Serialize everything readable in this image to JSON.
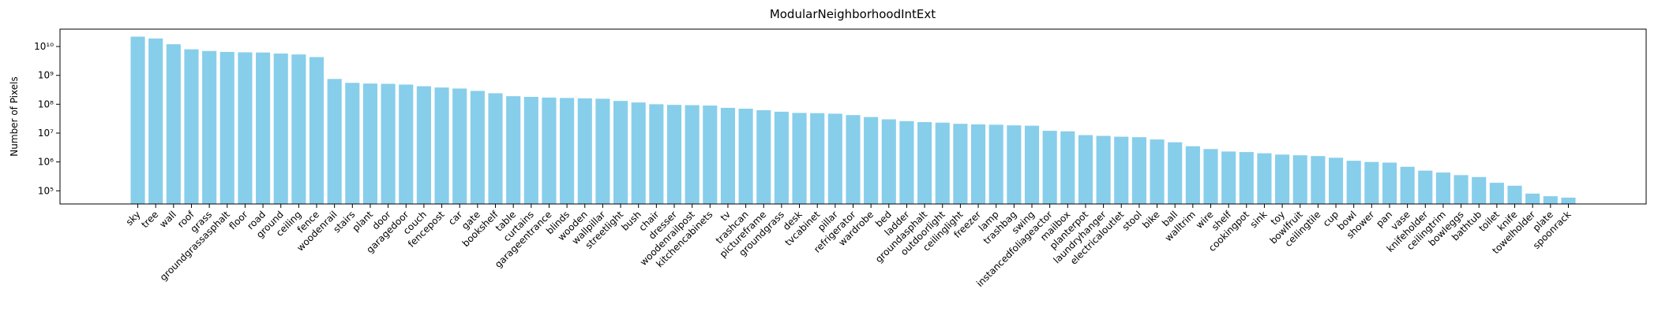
{
  "chart_data": {
    "type": "bar",
    "title": "ModularNeighborhoodIntExt",
    "ylabel": "Number of Pixels",
    "categories": [
      "sky",
      "tree",
      "wall",
      "roof",
      "grass",
      "groundgrassasphalt",
      "floor",
      "road",
      "ground",
      "ceiling",
      "fence",
      "woodenrail",
      "stairs",
      "plant",
      "door",
      "garagedoor",
      "couch",
      "fencepost",
      "car",
      "gate",
      "bookshelf",
      "table",
      "curtains",
      "garageentrance",
      "blinds",
      "wooden",
      "wallpillar",
      "streetlight",
      "bush",
      "chair",
      "dresser",
      "woodenrailpost",
      "kitchencabinets",
      "tv",
      "trashcan",
      "pictureframe",
      "groundgrass",
      "desk",
      "tvcabinet",
      "pillar",
      "refrigerator",
      "wardrobe",
      "bed",
      "ladder",
      "groundasphalt",
      "outdoorlight",
      "ceilinglight",
      "freezer",
      "lamp",
      "trashbag",
      "swing",
      "instancedfoliageactor",
      "mailbox",
      "planterpot",
      "laundryhanger",
      "electricaloutlet",
      "stool",
      "bike",
      "ball",
      "walltrim",
      "wire",
      "shelf",
      "cookingpot",
      "sink",
      "toy",
      "bowlfruit",
      "ceilingtile",
      "cup",
      "bowl",
      "shower",
      "pan",
      "vase",
      "knifeholder",
      "ceilingtrim",
      "bowleggs",
      "bathtub",
      "toilet",
      "knife",
      "towelholder",
      "plate",
      "spoonrack"
    ],
    "values": [
      22000000000,
      19000000000,
      12000000000,
      8000000000,
      7000000000,
      6500000000,
      6300000000,
      6200000000,
      5700000000,
      5300000000,
      4300000000,
      750000000,
      550000000,
      520000000,
      510000000,
      480000000,
      420000000,
      380000000,
      350000000,
      290000000,
      240000000,
      190000000,
      180000000,
      170000000,
      165000000,
      160000000,
      155000000,
      130000000,
      115000000,
      100000000,
      95000000,
      93000000,
      90000000,
      75000000,
      70000000,
      62000000,
      55000000,
      50000000,
      49000000,
      47000000,
      42000000,
      36000000,
      30000000,
      26000000,
      24000000,
      23000000,
      21000000,
      20000000,
      19500000,
      18500000,
      18000000,
      12000000,
      11500000,
      8500000,
      8000000,
      7500000,
      7200000,
      6000000,
      4800000,
      3500000,
      2800000,
      2300000,
      2200000,
      2000000,
      1800000,
      1700000,
      1600000,
      1400000,
      1100000,
      1000000,
      950000,
      680000,
      500000,
      430000,
      350000,
      300000,
      190000,
      150000,
      80000,
      65000,
      58000
    ],
    "color": "#87ceeb",
    "log_y": true,
    "ylim": [
      35000,
      40000000000
    ],
    "yticks": [
      {
        "value": 100000,
        "label": "10⁵"
      },
      {
        "value": 1000000,
        "label": "10⁶"
      },
      {
        "value": 10000000,
        "label": "10⁷"
      },
      {
        "value": 100000000,
        "label": "10⁸"
      },
      {
        "value": 1000000000,
        "label": "10⁹"
      },
      {
        "value": 10000000000,
        "label": "10¹⁰"
      }
    ]
  }
}
